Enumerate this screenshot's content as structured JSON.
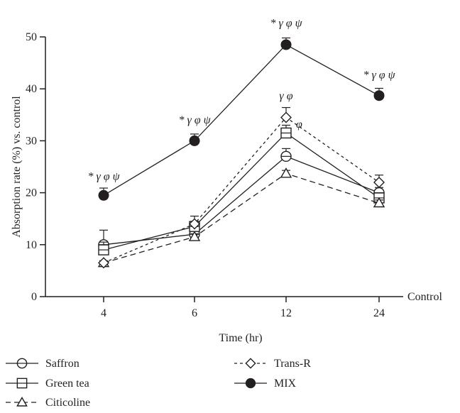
{
  "chart_data": {
    "type": "line",
    "title": "",
    "xlabel": "Time (hr)",
    "ylabel": "Absorption rate (%) vs. control",
    "categories": [
      "4",
      "6",
      "12",
      "24"
    ],
    "ylim": [
      0,
      50
    ],
    "yticks": [
      "0",
      "10",
      "20",
      "30",
      "40",
      "50"
    ],
    "baseline_label": "Control",
    "grid": false,
    "legend_position": "bottom-left",
    "series": [
      {
        "name": "Saffron",
        "marker": "circle",
        "line": "solid",
        "values": [
          10.0,
          12.0,
          27.0,
          20.0
        ],
        "errors": [
          2.8,
          1.2,
          1.5,
          1.0
        ]
      },
      {
        "name": "Green tea",
        "marker": "square",
        "line": "solid",
        "values": [
          9.0,
          13.5,
          31.5,
          19.0
        ],
        "errors": [
          1.5,
          1.0,
          1.5,
          1.0
        ]
      },
      {
        "name": "Citicoline",
        "marker": "triangle",
        "line": "dashed",
        "values": [
          6.5,
          11.5,
          23.7,
          18.0
        ],
        "errors": [
          0.4,
          0.6,
          0.6,
          0.6
        ]
      },
      {
        "name": "Trans-R",
        "marker": "diamond",
        "line": "dotted",
        "values": [
          6.5,
          14.0,
          34.5,
          22.0
        ],
        "errors": [
          0.4,
          1.5,
          1.9,
          1.4
        ]
      },
      {
        "name": "MIX",
        "marker": "filled-circle",
        "line": "solid",
        "values": [
          19.5,
          30.0,
          48.5,
          38.7
        ],
        "errors": [
          1.4,
          1.3,
          1.3,
          1.4
        ]
      }
    ],
    "annotations": [
      {
        "text": "* γ φ ψ",
        "x": "4",
        "y": 22.5
      },
      {
        "text": "* γ φ ψ",
        "x": "6",
        "y": 33.3
      },
      {
        "text": "* γ φ ψ",
        "x": "12",
        "y": 52.0
      },
      {
        "text": "* γ φ ψ",
        "x": "24",
        "y": 42.0
      },
      {
        "text": "γ φ",
        "x": "12",
        "y": 38.0
      },
      {
        "text": "φ",
        "x": "12",
        "y": 32.5,
        "side": "right"
      }
    ]
  }
}
